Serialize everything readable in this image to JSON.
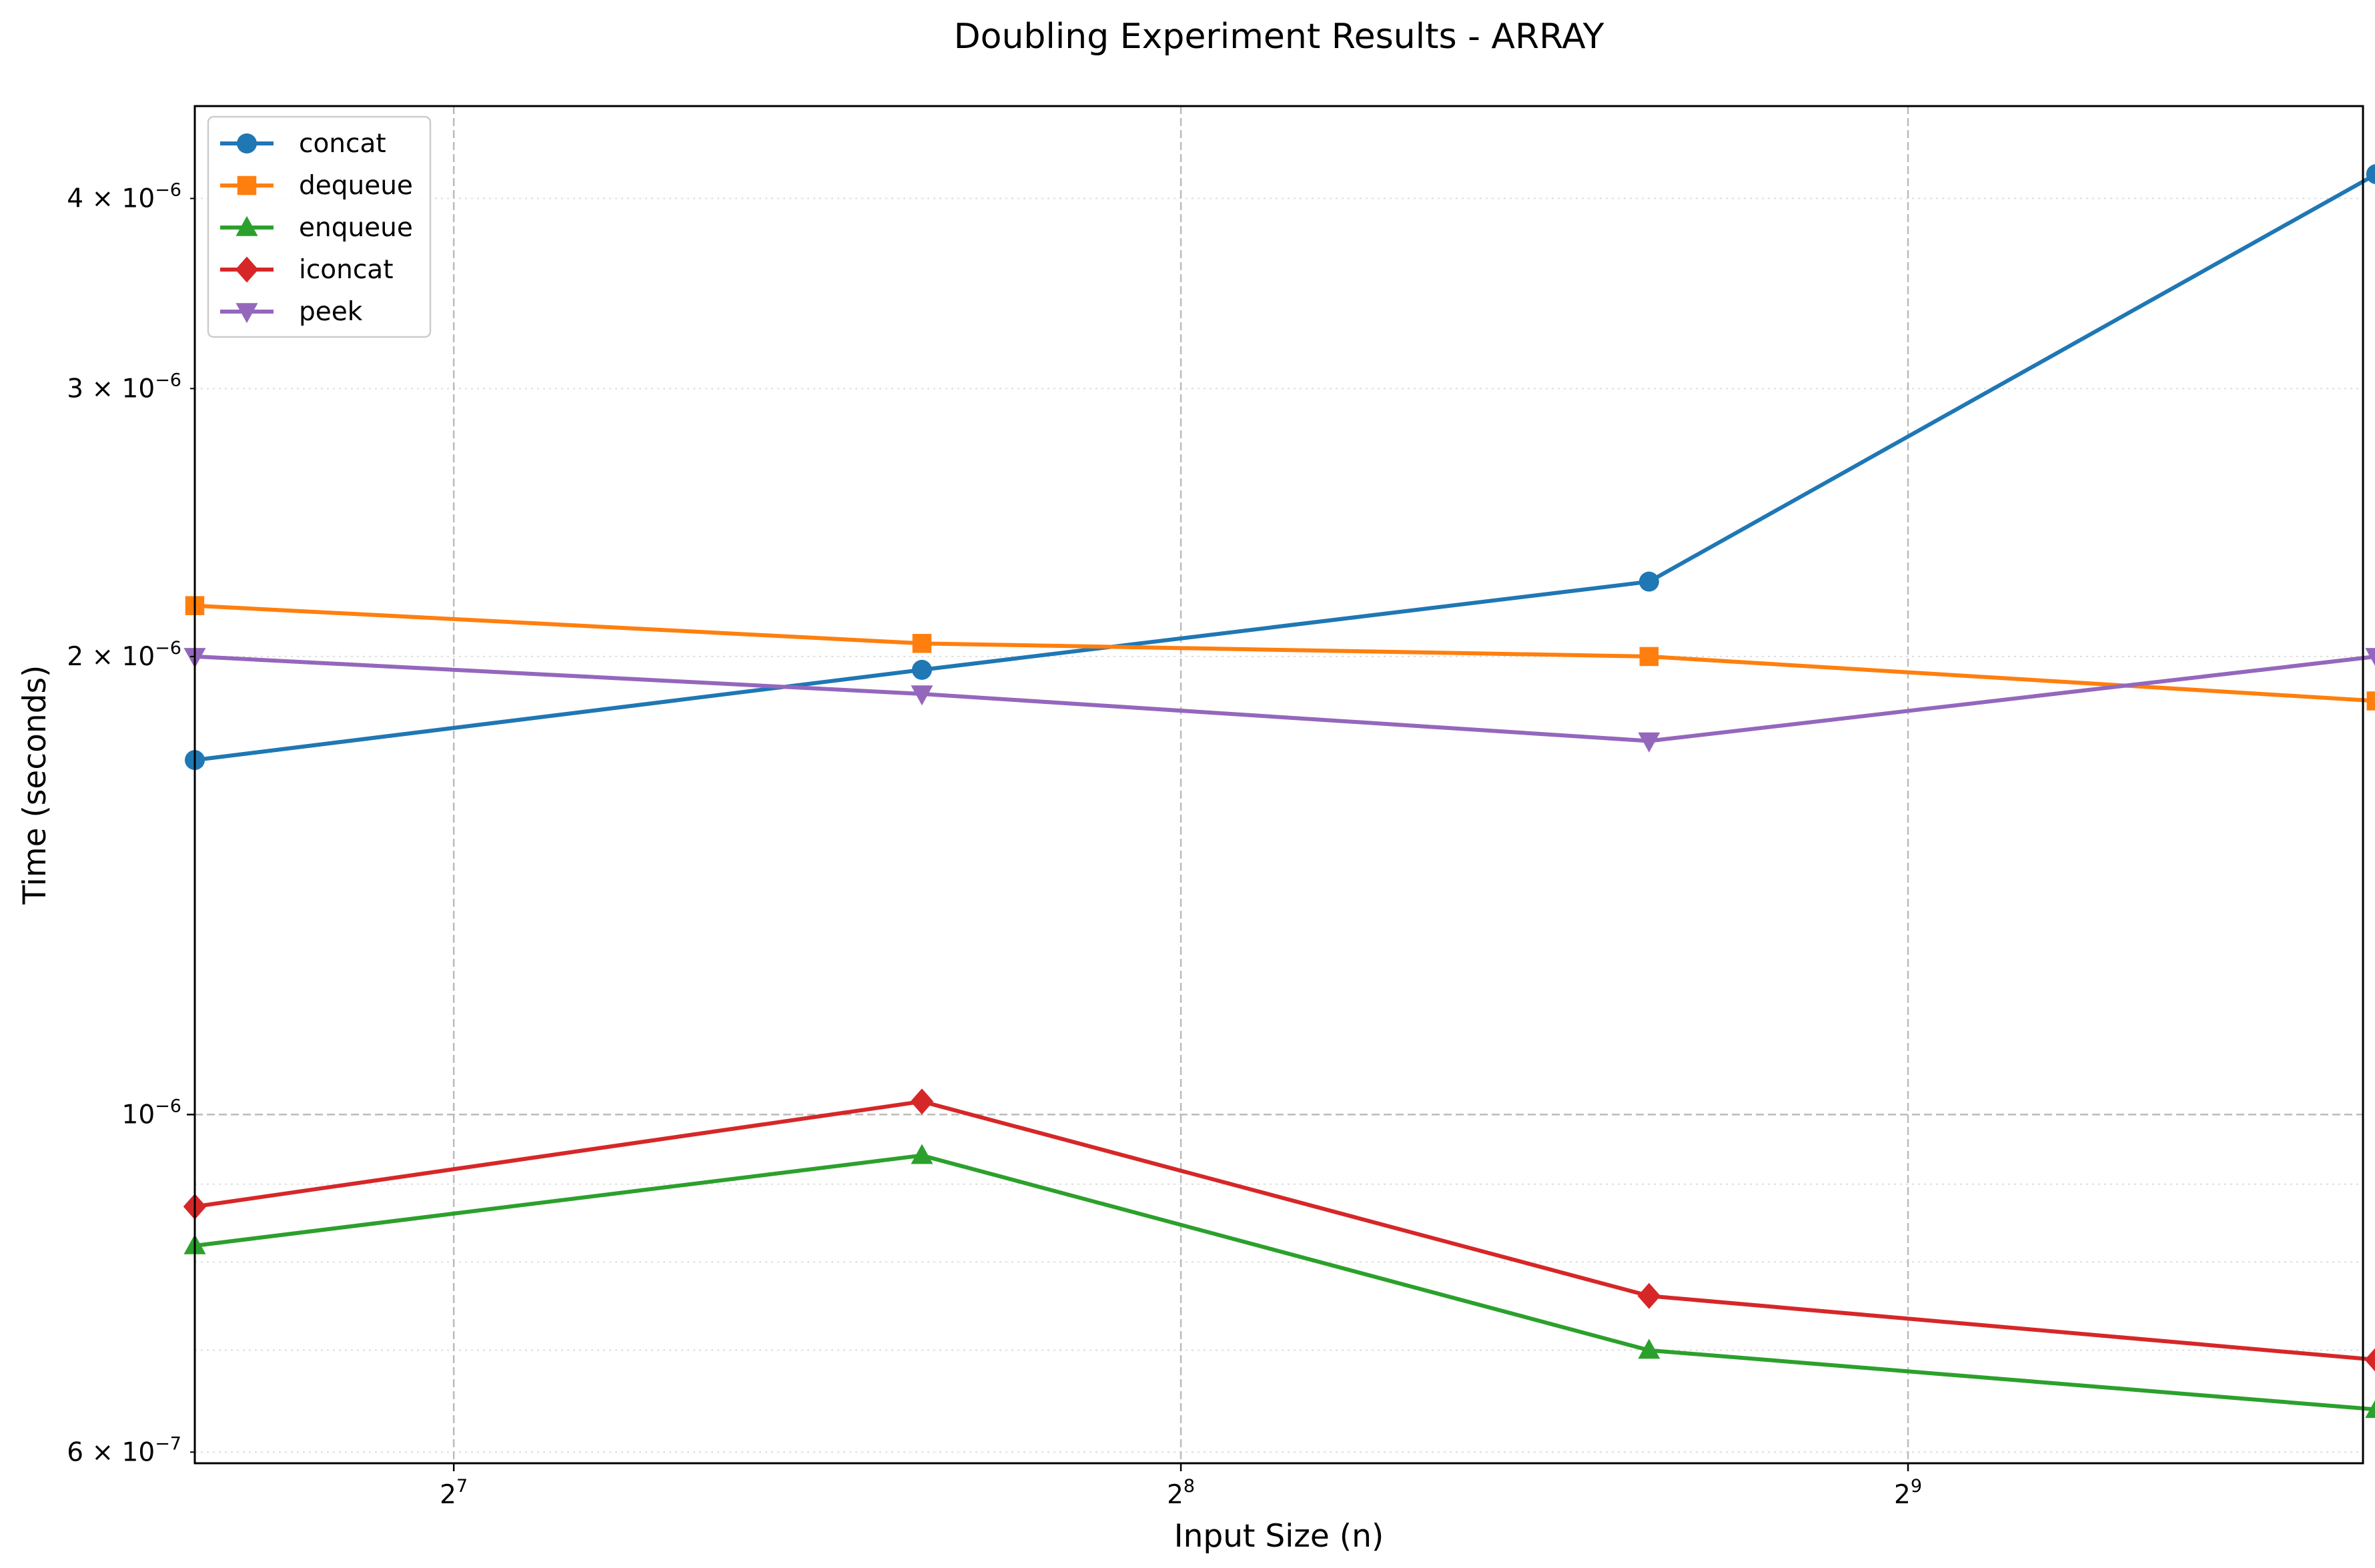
{
  "chart_data": {
    "type": "line",
    "title": "Doubling Experiment Results - ARRAY",
    "xlabel": "Input Size (n)",
    "ylabel": "Time (seconds)",
    "x_scale": "log2",
    "y_scale": "log",
    "xlim": [
      100,
      790
    ],
    "ylim": [
      5.9e-07,
      4.6e-06
    ],
    "x": [
      100,
      200,
      400,
      800
    ],
    "x_ticks": [
      {
        "value": 128,
        "base": "2",
        "exp": "7"
      },
      {
        "value": 256,
        "base": "2",
        "exp": "8"
      },
      {
        "value": 512,
        "base": "2",
        "exp": "9"
      }
    ],
    "y_ticks": [
      {
        "value": 6e-07,
        "mant": "6",
        "times": " × ",
        "base": "10",
        "exp": "−7",
        "major": false
      },
      {
        "value": 1e-06,
        "mant": "",
        "times": "",
        "base": "10",
        "exp": "−6",
        "major": true
      },
      {
        "value": 2e-06,
        "mant": "2",
        "times": " × ",
        "base": "10",
        "exp": "−6",
        "major": false
      },
      {
        "value": 3e-06,
        "mant": "3",
        "times": " × ",
        "base": "10",
        "exp": "−6",
        "major": false
      },
      {
        "value": 4e-06,
        "mant": "4",
        "times": " × ",
        "base": "10",
        "exp": "−6",
        "major": false
      }
    ],
    "y_minor_grid": [
      6e-07,
      7e-07,
      8e-07,
      9e-07,
      2e-06,
      3e-06,
      4e-06
    ],
    "grid": "major dashed, minor dotted",
    "legend_position": "upper-left",
    "series": [
      {
        "name": "concat",
        "color": "#1f77b4",
        "marker": "circle",
        "values": [
          1.71e-06,
          1.96e-06,
          2.24e-06,
          4.15e-06
        ]
      },
      {
        "name": "dequeue",
        "color": "#ff7f0e",
        "marker": "square",
        "values": [
          2.16e-06,
          2.04e-06,
          2e-06,
          1.87e-06
        ]
      },
      {
        "name": "enqueue",
        "color": "#2ca02c",
        "marker": "triangle-up",
        "values": [
          8.2e-07,
          9.4e-07,
          7e-07,
          6.4e-07
        ]
      },
      {
        "name": "iconcat",
        "color": "#d62728",
        "marker": "diamond",
        "values": [
          8.7e-07,
          1.02e-06,
          7.6e-07,
          6.9e-07
        ]
      },
      {
        "name": "peek",
        "color": "#9467bd",
        "marker": "triangle-down",
        "values": [
          2e-06,
          1.89e-06,
          1.76e-06,
          2e-06
        ]
      }
    ]
  }
}
